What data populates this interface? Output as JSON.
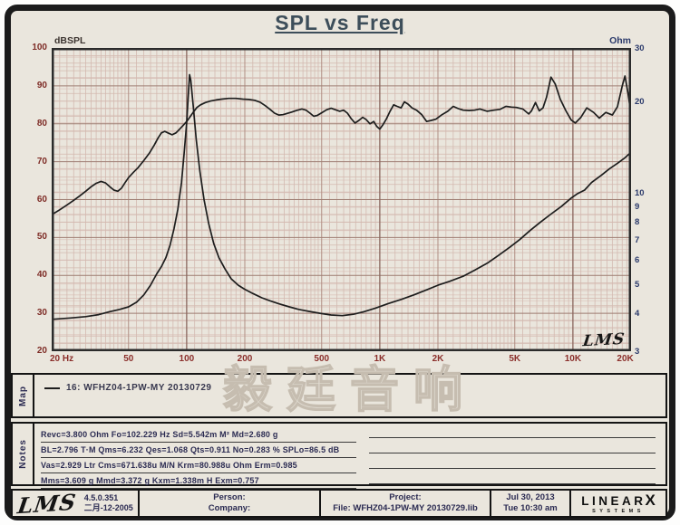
{
  "title": "SPL vs Freq",
  "colors": {
    "page_bg": "#eae6dd",
    "frame": "#1b1b1b",
    "title": "#3d4e5a",
    "grid_faint": "#ddc8c0",
    "grid_minor": "#d3b9b0",
    "grid_medium": "#b08e83",
    "grid_major": "#9e7d72",
    "grid_decade": "#8a675e",
    "plot_border": "#2b2b2b",
    "curve": "#1d1d1d",
    "tick_red": "#8b2f2b",
    "tick_blue": "#2b3a6b"
  },
  "watermark": "毅廷音响",
  "plot": {
    "lms_logo": "LMS"
  },
  "chart_data": {
    "type": "line",
    "title": "SPL vs Freq",
    "x_axis": {
      "scale": "log",
      "range": [
        20,
        20000
      ],
      "unit": "Hz"
    },
    "x_ticks": [
      {
        "f": 20,
        "label": "20 Hz"
      },
      {
        "f": 50,
        "label": "50"
      },
      {
        "f": 100,
        "label": "100"
      },
      {
        "f": 200,
        "label": "200"
      },
      {
        "f": 500,
        "label": "500"
      },
      {
        "f": 1000,
        "label": "1K"
      },
      {
        "f": 2000,
        "label": "2K"
      },
      {
        "f": 5000,
        "label": "5K"
      },
      {
        "f": 10000,
        "label": "10K"
      },
      {
        "f": 20000,
        "label": "20K"
      }
    ],
    "y_left": {
      "label": "dBSPL",
      "range": [
        20,
        100
      ],
      "scale": "linear",
      "ticks": [
        100,
        90,
        80,
        70,
        60,
        50,
        40,
        30,
        20
      ]
    },
    "y_right": {
      "label": "Ohm",
      "range": [
        3,
        30
      ],
      "scale": "log",
      "ticks": [
        30,
        20,
        10,
        9,
        8,
        7,
        6,
        5,
        4,
        3
      ]
    },
    "legend_position": "map-strip-below",
    "grid": true,
    "series": [
      {
        "name": "16: WFHZ04-1PW-MY 20130729 (SPL)",
        "axis": "left",
        "points": [
          [
            20,
            56
          ],
          [
            22,
            57.3
          ],
          [
            24,
            58.6
          ],
          [
            26,
            59.8
          ],
          [
            28,
            61
          ],
          [
            30,
            62.2
          ],
          [
            32,
            63.4
          ],
          [
            34,
            64.3
          ],
          [
            36,
            64.8
          ],
          [
            38,
            64.4
          ],
          [
            40,
            63.4
          ],
          [
            42,
            62.5
          ],
          [
            44,
            62.2
          ],
          [
            46,
            63
          ],
          [
            48,
            64.5
          ],
          [
            50,
            65.8
          ],
          [
            53,
            67.2
          ],
          [
            56,
            68.4
          ],
          [
            60,
            70.3
          ],
          [
            64,
            72.2
          ],
          [
            68,
            74.4
          ],
          [
            71,
            76.2
          ],
          [
            74,
            77.6
          ],
          [
            77,
            78
          ],
          [
            80,
            77.6
          ],
          [
            84,
            77.1
          ],
          [
            88,
            77.6
          ],
          [
            92,
            78.6
          ],
          [
            96,
            79.6
          ],
          [
            100,
            80.6
          ],
          [
            104,
            81.8
          ],
          [
            108,
            83
          ],
          [
            113,
            84.3
          ],
          [
            118,
            85
          ],
          [
            125,
            85.6
          ],
          [
            133,
            86
          ],
          [
            142,
            86.3
          ],
          [
            152,
            86.5
          ],
          [
            165,
            86.7
          ],
          [
            180,
            86.7
          ],
          [
            195,
            86.5
          ],
          [
            210,
            86.4
          ],
          [
            225,
            86.2
          ],
          [
            240,
            85.7
          ],
          [
            255,
            84.8
          ],
          [
            270,
            83.8
          ],
          [
            285,
            82.8
          ],
          [
            300,
            82.3
          ],
          [
            315,
            82.4
          ],
          [
            330,
            82.7
          ],
          [
            350,
            83.1
          ],
          [
            370,
            83.5
          ],
          [
            395,
            83.9
          ],
          [
            415,
            83.6
          ],
          [
            435,
            82.8
          ],
          [
            455,
            82
          ],
          [
            475,
            82.2
          ],
          [
            500,
            82.9
          ],
          [
            530,
            83.7
          ],
          [
            560,
            84.1
          ],
          [
            590,
            83.7
          ],
          [
            620,
            83.3
          ],
          [
            650,
            83.6
          ],
          [
            680,
            82.8
          ],
          [
            710,
            81.4
          ],
          [
            745,
            80.2
          ],
          [
            780,
            80.9
          ],
          [
            815,
            81.7
          ],
          [
            850,
            81.1
          ],
          [
            890,
            80
          ],
          [
            930,
            80.6
          ],
          [
            965,
            79.3
          ],
          [
            1000,
            78.6
          ],
          [
            1040,
            79.8
          ],
          [
            1080,
            81.2
          ],
          [
            1130,
            83.3
          ],
          [
            1180,
            85
          ],
          [
            1230,
            84.6
          ],
          [
            1290,
            84.2
          ],
          [
            1340,
            85.8
          ],
          [
            1400,
            85.2
          ],
          [
            1470,
            84.2
          ],
          [
            1550,
            83.6
          ],
          [
            1650,
            82.4
          ],
          [
            1750,
            80.6
          ],
          [
            1850,
            80.9
          ],
          [
            1950,
            81.2
          ],
          [
            2100,
            82.4
          ],
          [
            2250,
            83.3
          ],
          [
            2400,
            84.6
          ],
          [
            2550,
            84
          ],
          [
            2700,
            83.6
          ],
          [
            2900,
            83.5
          ],
          [
            3100,
            83.6
          ],
          [
            3300,
            83.9
          ],
          [
            3600,
            83.3
          ],
          [
            3900,
            83.6
          ],
          [
            4200,
            83.8
          ],
          [
            4500,
            84.6
          ],
          [
            4800,
            84.4
          ],
          [
            5100,
            84.3
          ],
          [
            5500,
            83.9
          ],
          [
            5900,
            82.6
          ],
          [
            6100,
            83.4
          ],
          [
            6400,
            85.6
          ],
          [
            6700,
            83.4
          ],
          [
            7000,
            84.2
          ],
          [
            7300,
            87
          ],
          [
            7700,
            92.3
          ],
          [
            8100,
            90.5
          ],
          [
            8600,
            86.5
          ],
          [
            9200,
            83.4
          ],
          [
            9800,
            81
          ],
          [
            10300,
            80.2
          ],
          [
            11000,
            81.7
          ],
          [
            11800,
            84.2
          ],
          [
            12800,
            83
          ],
          [
            13700,
            81.5
          ],
          [
            14800,
            83
          ],
          [
            16000,
            82.3
          ],
          [
            17000,
            84.5
          ],
          [
            18000,
            90
          ],
          [
            18600,
            92.6
          ],
          [
            19300,
            88
          ],
          [
            20000,
            82.5
          ]
        ]
      },
      {
        "name": "16: WFHZ04-1PW-MY 20130729 (Impedance)",
        "axis": "right",
        "points": [
          [
            20,
            3.82
          ],
          [
            25,
            3.86
          ],
          [
            30,
            3.9
          ],
          [
            35,
            3.96
          ],
          [
            40,
            4.05
          ],
          [
            45,
            4.12
          ],
          [
            50,
            4.2
          ],
          [
            55,
            4.35
          ],
          [
            60,
            4.6
          ],
          [
            65,
            4.95
          ],
          [
            70,
            5.4
          ],
          [
            74,
            5.7
          ],
          [
            78,
            6.1
          ],
          [
            82,
            6.7
          ],
          [
            86,
            7.6
          ],
          [
            90,
            8.8
          ],
          [
            94,
            10.8
          ],
          [
            97,
            13.5
          ],
          [
            100,
            17
          ],
          [
            102,
            21
          ],
          [
            103.5,
            24.5
          ],
          [
            105,
            23.5
          ],
          [
            108,
            19.5
          ],
          [
            112,
            15
          ],
          [
            117,
            11.8
          ],
          [
            123,
            9.5
          ],
          [
            130,
            7.9
          ],
          [
            138,
            6.8
          ],
          [
            147,
            6.1
          ],
          [
            158,
            5.6
          ],
          [
            170,
            5.2
          ],
          [
            185,
            4.95
          ],
          [
            200,
            4.8
          ],
          [
            220,
            4.65
          ],
          [
            245,
            4.5
          ],
          [
            270,
            4.4
          ],
          [
            300,
            4.3
          ],
          [
            340,
            4.2
          ],
          [
            380,
            4.12
          ],
          [
            430,
            4.06
          ],
          [
            490,
            4
          ],
          [
            560,
            3.95
          ],
          [
            640,
            3.93
          ],
          [
            730,
            3.97
          ],
          [
            830,
            4.05
          ],
          [
            950,
            4.16
          ],
          [
            1100,
            4.3
          ],
          [
            1300,
            4.45
          ],
          [
            1500,
            4.6
          ],
          [
            1750,
            4.78
          ],
          [
            2000,
            4.95
          ],
          [
            2300,
            5.1
          ],
          [
            2700,
            5.3
          ],
          [
            3100,
            5.55
          ],
          [
            3600,
            5.85
          ],
          [
            4100,
            6.2
          ],
          [
            4700,
            6.6
          ],
          [
            5300,
            7
          ],
          [
            6000,
            7.5
          ],
          [
            6800,
            8
          ],
          [
            7700,
            8.5
          ],
          [
            8700,
            9
          ],
          [
            9800,
            9.6
          ],
          [
            10500,
            9.9
          ],
          [
            11500,
            10.2
          ],
          [
            12500,
            10.8
          ],
          [
            14000,
            11.4
          ],
          [
            15500,
            12
          ],
          [
            17000,
            12.5
          ],
          [
            18500,
            13
          ],
          [
            20000,
            13.6
          ]
        ]
      }
    ]
  },
  "map": {
    "label": "Map",
    "legend": "16: WFHZ04-1PW-MY   20130729"
  },
  "notes": {
    "label": "Notes",
    "lines": [
      "Revc=3.800 Ohm  Fo=102.229 Hz  Sd=5.542m M²  Md=2.680 g",
      "BL=2.796 T·M  Qms=6.232  Qes=1.068  Qts=0.911  No=0.283 %  SPLo=86.5 dB",
      "Vas=2.929 Ltr  Cms=671.638u M/N  Krm=80.988u Ohm  Erm=0.985",
      "Mms=3.609 g  Mmd=3.372 g  Kxm=1.338m H  Exm=0.757"
    ]
  },
  "footer": {
    "lms_logo": "LMS",
    "version": "4.5.0.351",
    "date_cn": "二月-12-2005",
    "person": "Person:",
    "company": "Company:",
    "project": "Project:",
    "file": "File: WFHZ04-1PW-MY 20130729.lib",
    "date": "Jul 30, 2013",
    "time": "Tue 10:30 am",
    "brand_linear": "LINEAR",
    "brand_x": "X",
    "brand_systems": "SYSTEMS"
  }
}
